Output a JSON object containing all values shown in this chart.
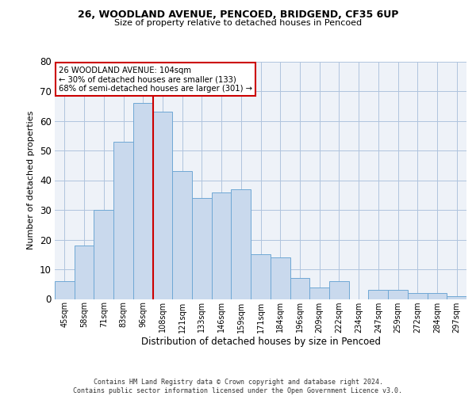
{
  "title1": "26, WOODLAND AVENUE, PENCOED, BRIDGEND, CF35 6UP",
  "title2": "Size of property relative to detached houses in Pencoed",
  "xlabel": "Distribution of detached houses by size in Pencoed",
  "ylabel": "Number of detached properties",
  "categories": [
    "45sqm",
    "58sqm",
    "71sqm",
    "83sqm",
    "96sqm",
    "108sqm",
    "121sqm",
    "133sqm",
    "146sqm",
    "159sqm",
    "171sqm",
    "184sqm",
    "196sqm",
    "209sqm",
    "222sqm",
    "234sqm",
    "247sqm",
    "259sqm",
    "272sqm",
    "284sqm",
    "297sqm"
  ],
  "values": [
    6,
    18,
    30,
    53,
    66,
    63,
    43,
    34,
    36,
    37,
    15,
    14,
    7,
    4,
    6,
    0,
    3,
    3,
    2,
    2,
    1
  ],
  "bar_color": "#c9d9ed",
  "bar_edge_color": "#6fa8d5",
  "vline_x_idx": 4,
  "vline_color": "#cc0000",
  "annotation_text": "26 WOODLAND AVENUE: 104sqm\n← 30% of detached houses are smaller (133)\n68% of semi-detached houses are larger (301) →",
  "annotation_box_color": "white",
  "annotation_box_edge": "#cc0000",
  "footer": "Contains HM Land Registry data © Crown copyright and database right 2024.\nContains public sector information licensed under the Open Government Licence v3.0.",
  "ylim": [
    0,
    80
  ],
  "yticks": [
    0,
    10,
    20,
    30,
    40,
    50,
    60,
    70,
    80
  ],
  "grid_color": "#b0c4de",
  "bg_color": "#eef2f8"
}
